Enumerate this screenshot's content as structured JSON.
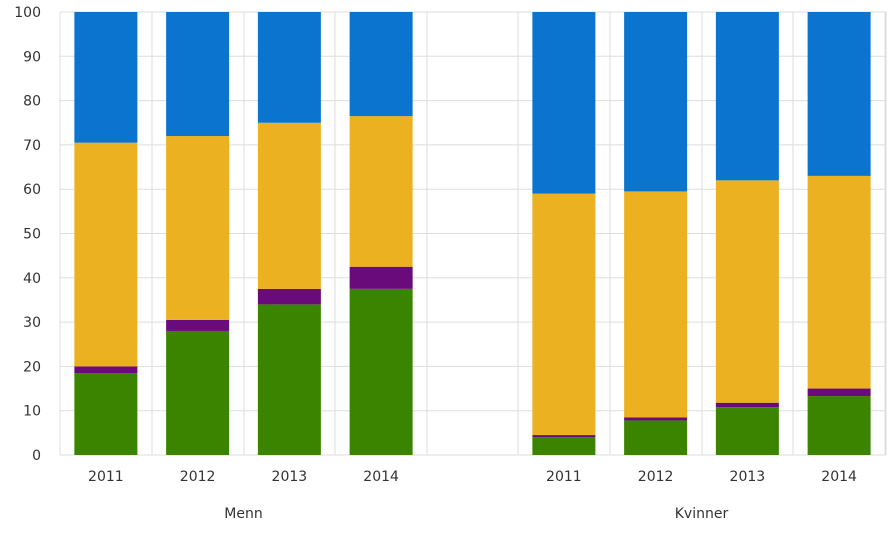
{
  "chart_data": {
    "type": "bar",
    "stacked": true,
    "ylim": [
      0,
      100
    ],
    "yticks": [
      0,
      10,
      20,
      30,
      40,
      50,
      60,
      70,
      80,
      90,
      100
    ],
    "grid": true,
    "title": "",
    "xlabel": "",
    "ylabel": "",
    "groups": [
      {
        "label": "Menn",
        "categories": [
          "2011",
          "2012",
          "2013",
          "2014"
        ],
        "series": [
          {
            "color": "#3a8400",
            "values": [
              18.5,
              28,
              34,
              37.5
            ]
          },
          {
            "color": "#6a0b7c",
            "values": [
              1.5,
              2.5,
              3.5,
              5
            ]
          },
          {
            "color": "#ebb120",
            "values": [
              50.5,
              41.5,
              37.5,
              34
            ]
          },
          {
            "color": "#0a74cf",
            "values": [
              29.5,
              28,
              25,
              23.5
            ]
          }
        ]
      },
      {
        "label": "Kvinner",
        "categories": [
          "2011",
          "2012",
          "2013",
          "2014"
        ],
        "series": [
          {
            "color": "#3a8400",
            "values": [
              4,
              7.8,
              10.8,
              13.3
            ]
          },
          {
            "color": "#6a0b7c",
            "values": [
              0.5,
              0.7,
              1,
              1.7
            ]
          },
          {
            "color": "#ebb120",
            "values": [
              54.5,
              51,
              50.2,
              48
            ]
          },
          {
            "color": "#0a74cf",
            "values": [
              41,
              40.5,
              38,
              37
            ]
          }
        ]
      }
    ]
  }
}
